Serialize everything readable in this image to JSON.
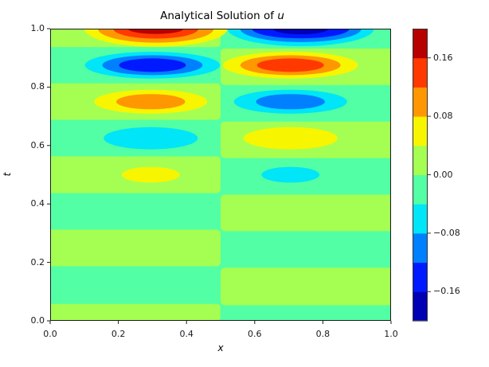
{
  "chart_data": {
    "type": "contourf",
    "title": "Analytical Solution of u",
    "title_prefix": "Analytical Solution of ",
    "title_var": "u",
    "xlabel": "x",
    "ylabel": "t",
    "xlim": [
      0,
      1
    ],
    "ylim": [
      0,
      1
    ],
    "grid": false,
    "xticks": [
      {
        "v": 0.0,
        "label": "0.0"
      },
      {
        "v": 0.2,
        "label": "0.2"
      },
      {
        "v": 0.4,
        "label": "0.4"
      },
      {
        "v": 0.6,
        "label": "0.6"
      },
      {
        "v": 0.8,
        "label": "0.8"
      },
      {
        "v": 1.0,
        "label": "1.0"
      }
    ],
    "yticks": [
      {
        "v": 0.0,
        "label": "0.0"
      },
      {
        "v": 0.2,
        "label": "0.2"
      },
      {
        "v": 0.4,
        "label": "0.4"
      },
      {
        "v": 0.6,
        "label": "0.6"
      },
      {
        "v": 0.8,
        "label": "0.8"
      },
      {
        "v": 1.0,
        "label": "1.0"
      }
    ],
    "levels": [
      -0.2,
      -0.16,
      -0.12,
      -0.08,
      -0.04,
      0.0,
      0.04,
      0.08,
      0.12,
      0.16,
      0.2
    ],
    "band_colors": [
      "#0000b4",
      "#0019ff",
      "#0080ff",
      "#00e5f7",
      "#52ffa4",
      "#a4ff52",
      "#f7f500",
      "#ff9700",
      "#ff3900",
      "#b70000"
    ],
    "colormap": "jet",
    "colorbar": {
      "vmin": -0.2,
      "vmax": 0.2,
      "n_segments": 10,
      "ticks": [
        {
          "v": 0.16,
          "label": "0.16"
        },
        {
          "v": 0.08,
          "label": "0.08"
        },
        {
          "v": 0.0,
          "label": "0.00"
        },
        {
          "v": -0.08,
          "label": "−0.08"
        },
        {
          "v": -0.16,
          "label": "−0.16"
        }
      ]
    },
    "field": {
      "description": "u oscillates in t with growing amplitude; left half (x<0.5) is the positive phase of the right half. Near-zero green stripes alternate every ~0.125 in t; elliptical extrema at t = 0.5, 0.625, 0.75, 0.875, 1.0.",
      "background_band": 4,
      "stripes": [
        {
          "half": "left",
          "band": 5,
          "t0": 0.0,
          "t1": 0.058
        },
        {
          "half": "left",
          "band": 5,
          "t0": 0.187,
          "t1": 0.312
        },
        {
          "half": "left",
          "band": 5,
          "t0": 0.437,
          "t1": 0.563
        },
        {
          "half": "left",
          "band": 5,
          "t0": 0.688,
          "t1": 0.813
        },
        {
          "half": "left",
          "band": 5,
          "t0": 0.937,
          "t1": 1.0
        },
        {
          "half": "right",
          "band": 5,
          "t0": 0.053,
          "t1": 0.182
        },
        {
          "half": "right",
          "band": 5,
          "t0": 0.307,
          "t1": 0.432
        },
        {
          "half": "right",
          "band": 5,
          "t0": 0.557,
          "t1": 0.682
        },
        {
          "half": "right",
          "band": 5,
          "t0": 0.807,
          "t1": 0.932
        }
      ],
      "blobs": [
        {
          "cx": 0.295,
          "cy": 0.5,
          "rings": [
            {
              "band": 6,
              "rx": 0.085,
              "ry": 0.027
            }
          ]
        },
        {
          "cx": 0.705,
          "cy": 0.5,
          "rings": [
            {
              "band": 3,
              "rx": 0.085,
              "ry": 0.027
            }
          ]
        },
        {
          "cx": 0.295,
          "cy": 0.625,
          "rings": [
            {
              "band": 3,
              "rx": 0.138,
              "ry": 0.038
            }
          ]
        },
        {
          "cx": 0.705,
          "cy": 0.625,
          "rings": [
            {
              "band": 6,
              "rx": 0.138,
              "ry": 0.038
            }
          ]
        },
        {
          "cx": 0.295,
          "cy": 0.75,
          "rings": [
            {
              "band": 6,
              "rx": 0.166,
              "ry": 0.041
            },
            {
              "band": 7,
              "rx": 0.101,
              "ry": 0.026
            }
          ]
        },
        {
          "cx": 0.705,
          "cy": 0.75,
          "rings": [
            {
              "band": 3,
              "rx": 0.166,
              "ry": 0.041
            },
            {
              "band": 2,
              "rx": 0.101,
              "ry": 0.026
            }
          ]
        },
        {
          "cx": 0.3,
          "cy": 0.875,
          "rings": [
            {
              "band": 3,
              "rx": 0.198,
              "ry": 0.046
            },
            {
              "band": 2,
              "rx": 0.147,
              "ry": 0.034
            },
            {
              "band": 1,
              "rx": 0.098,
              "ry": 0.023
            }
          ]
        },
        {
          "cx": 0.705,
          "cy": 0.875,
          "rings": [
            {
              "band": 6,
              "rx": 0.198,
              "ry": 0.046
            },
            {
              "band": 7,
              "rx": 0.147,
              "ry": 0.034
            },
            {
              "band": 8,
              "rx": 0.098,
              "ry": 0.023
            }
          ]
        },
        {
          "cx": 0.31,
          "cy": 1.0,
          "rings": [
            {
              "band": 6,
              "rx": 0.21,
              "ry": 0.062
            },
            {
              "band": 7,
              "rx": 0.17,
              "ry": 0.048
            },
            {
              "band": 8,
              "rx": 0.125,
              "ry": 0.034
            },
            {
              "band": 9,
              "rx": 0.082,
              "ry": 0.018
            }
          ]
        },
        {
          "cx": 0.735,
          "cy": 1.0,
          "rings": [
            {
              "band": 3,
              "rx": 0.215,
              "ry": 0.06
            },
            {
              "band": 2,
              "rx": 0.178,
              "ry": 0.046
            },
            {
              "band": 1,
              "rx": 0.143,
              "ry": 0.033
            },
            {
              "band": 0,
              "rx": 0.082,
              "ry": 0.019
            }
          ]
        }
      ]
    },
    "spine_color": "#1a1a1a"
  }
}
